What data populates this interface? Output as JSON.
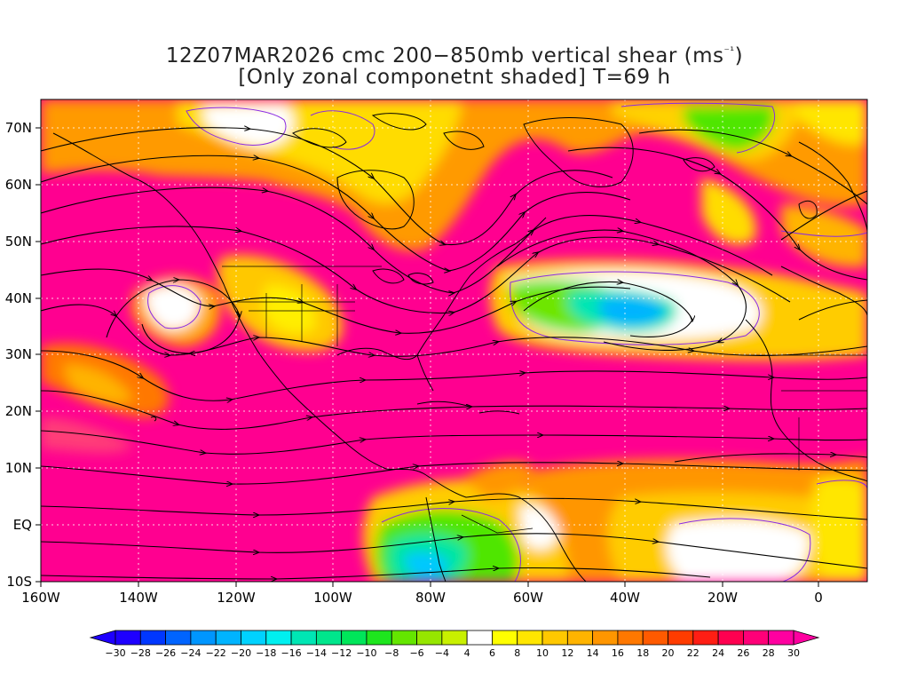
{
  "title": {
    "prefix": "12Z07MAR2026 cmc 200−850mb vertical shear (ms",
    "unit_sup": "⁻¹",
    "suffix": ")",
    "subtitle": "[Only zonal componetnt shaded] T=69 h"
  },
  "map": {
    "lon_range": [
      -160,
      10
    ],
    "lat_range": [
      -10,
      75
    ],
    "x_ticks": [
      "160W",
      "140W",
      "120W",
      "100W",
      "80W",
      "60W",
      "40W",
      "20W",
      "0"
    ],
    "x_tick_values": [
      -160,
      -140,
      -120,
      -100,
      -80,
      -60,
      -40,
      -20,
      0
    ],
    "y_ticks": [
      "10S",
      "EQ",
      "10N",
      "20N",
      "30N",
      "40N",
      "50N",
      "60N",
      "70N"
    ],
    "y_tick_values": [
      -10,
      0,
      10,
      20,
      30,
      40,
      50,
      60,
      70
    ],
    "gridlines": true,
    "shaded_field": "zonal component of 200-850mb vertical shear",
    "dominant_regions": [
      {
        "area": "subtropical jet band 15N-35N across domain",
        "level": 30
      },
      {
        "area": "northern jet arc over western Canada / Greenland",
        "level": 30
      },
      {
        "area": "central Atlantic near 35N 35W",
        "level": -24
      },
      {
        "area": "northern South America near 5S 80W",
        "level": -12
      }
    ]
  },
  "colorbar": {
    "labels": [
      "−30",
      "−28",
      "−26",
      "−24",
      "−22",
      "−20",
      "−18",
      "−16",
      "−14",
      "−12",
      "−10",
      "−8",
      "−6",
      "−4",
      "4",
      "6",
      "8",
      "10",
      "12",
      "14",
      "16",
      "18",
      "20",
      "22",
      "24",
      "26",
      "28",
      "30"
    ],
    "colors": [
      "#1e00ff",
      "#0037ff",
      "#0064ff",
      "#0096ff",
      "#00b4ff",
      "#00d2ff",
      "#00f0f0",
      "#00e6b4",
      "#00e68c",
      "#00e65a",
      "#1ee61e",
      "#64e600",
      "#96e600",
      "#c8f000",
      "#ffffff",
      "#ffff00",
      "#ffe600",
      "#ffc800",
      "#ffb400",
      "#ff9600",
      "#ff7800",
      "#ff5a00",
      "#ff3c00",
      "#ff1e14",
      "#ff0050",
      "#ff0078",
      "#ff00a0"
    ]
  }
}
